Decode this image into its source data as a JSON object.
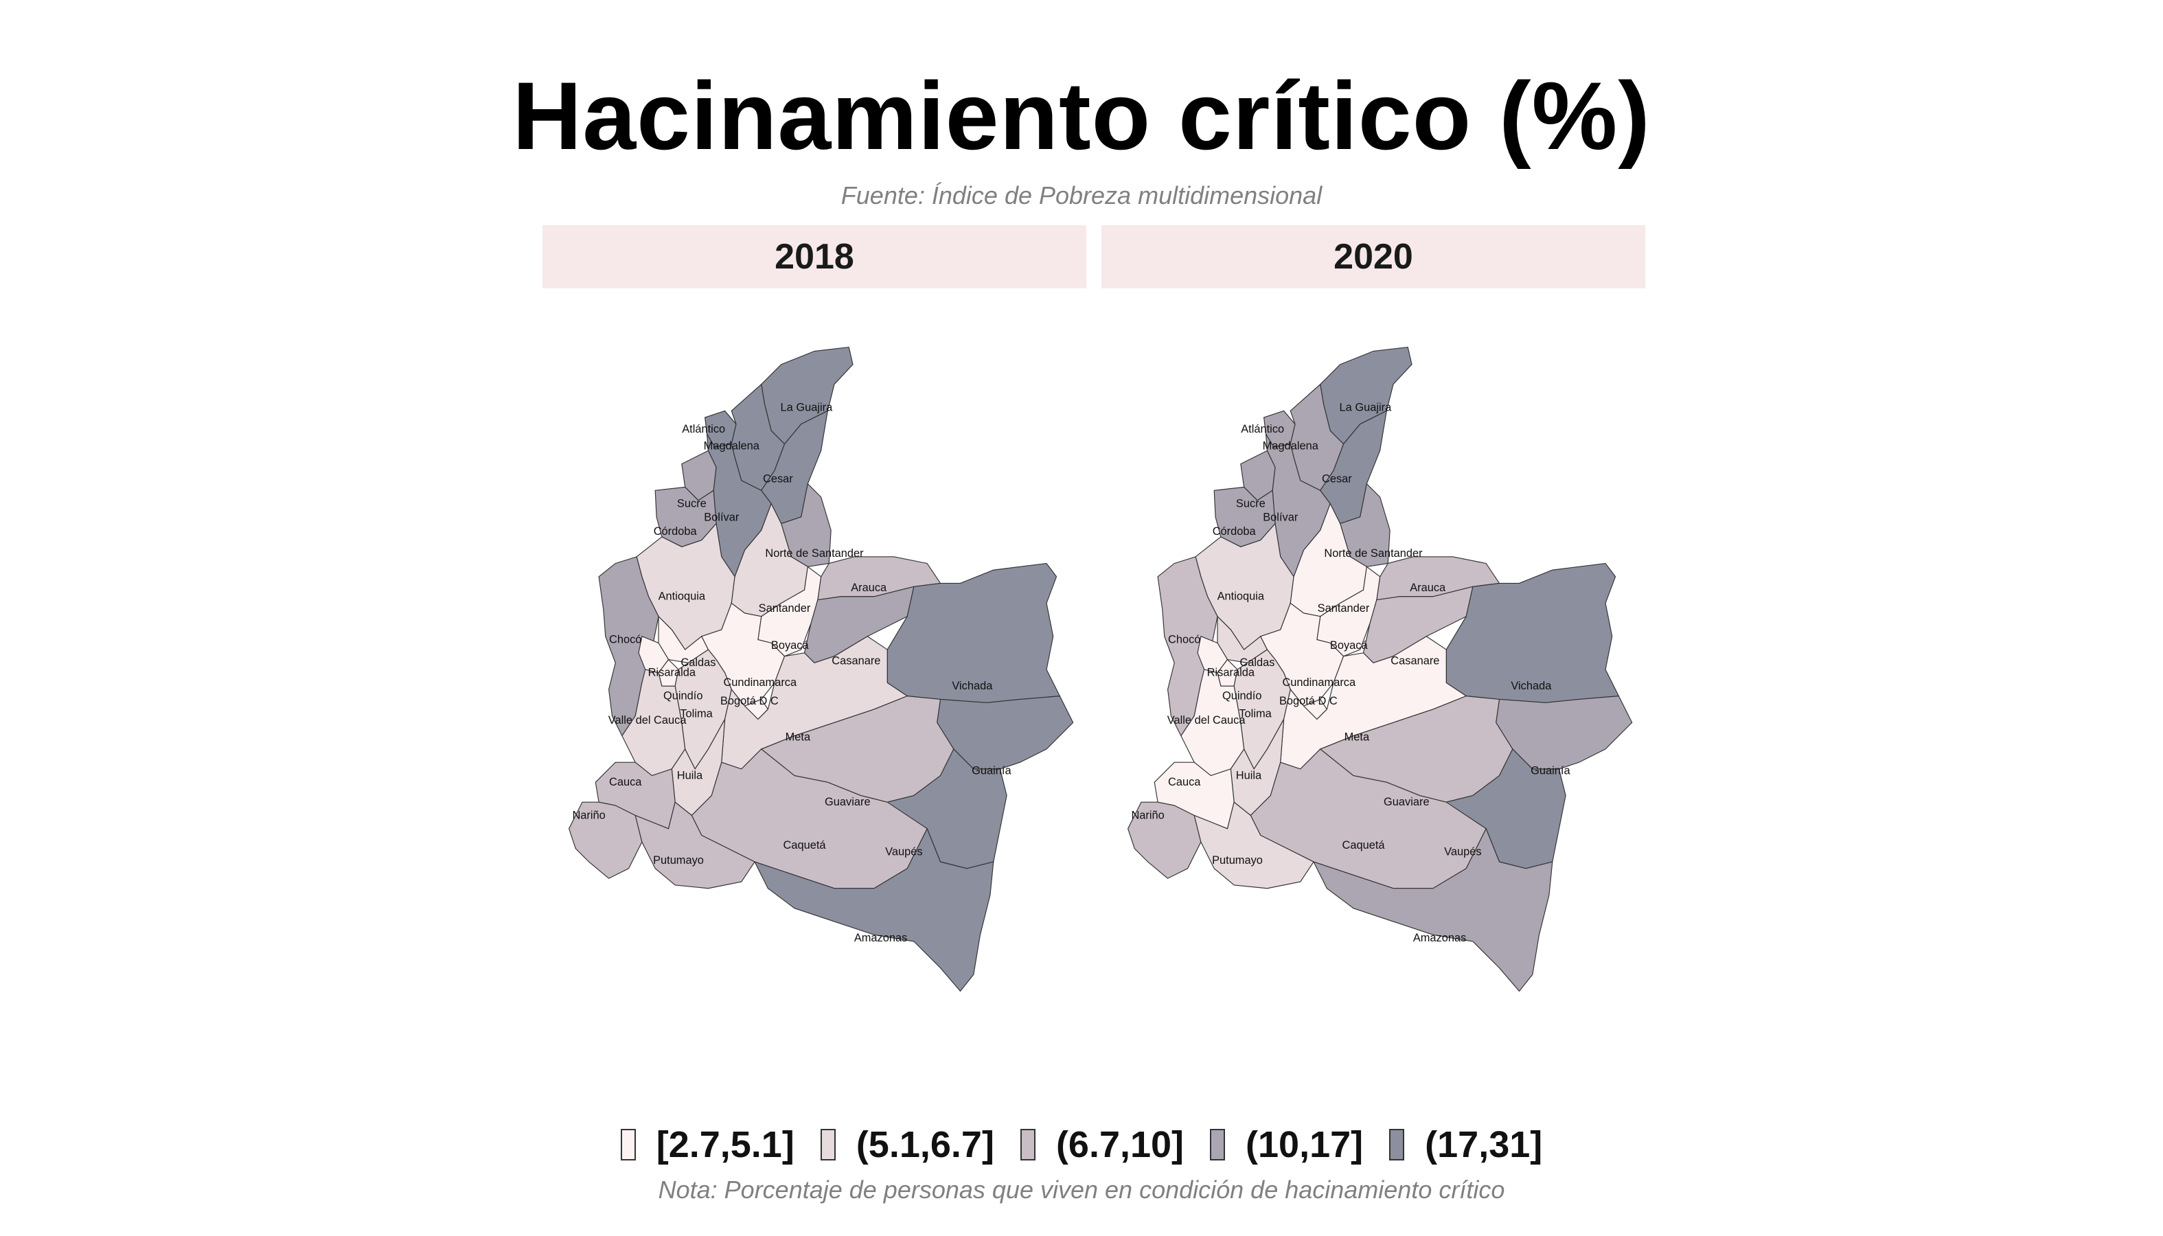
{
  "title": "Hacinamiento crítico (%)",
  "subtitle": "Fuente: Índice de Pobreza multidimensional",
  "note": "Nota: Porcentaje de personas que viven en condición de hacinamiento crítico",
  "panels": [
    {
      "year": "2018"
    },
    {
      "year": "2020"
    }
  ],
  "legend": {
    "classes": [
      {
        "label": "[2.7,5.1]",
        "color": "#fcf2f2"
      },
      {
        "label": "(5.1,6.7]",
        "color": "#e7dbde"
      },
      {
        "label": "(6.7,10]",
        "color": "#c9bec5"
      },
      {
        "label": "(10,17]",
        "color": "#aba6b2"
      },
      {
        "label": "(17,31]",
        "color": "#8b8f9e"
      }
    ]
  },
  "map_data": {
    "type": "choropleth",
    "region_names": {
      "la_guajira": "La Guajira",
      "atlantico": "Atlántico",
      "magdalena": "Magdalena",
      "cesar": "Cesar",
      "sucre": "Sucre",
      "bolivar": "Bolívar",
      "cordoba": "Córdoba",
      "norte_santander": "Norte de Santander",
      "antioquia": "Antioquia",
      "santander": "Santander",
      "arauca": "Arauca",
      "choco": "Chocó",
      "boyaca": "Boyacá",
      "casanare": "Casanare",
      "caldas": "Caldas",
      "risaralda": "Risaralda",
      "cundinamarca": "Cundinamarca",
      "vichada": "Vichada",
      "quindio": "Quindío",
      "bogota": "Bogotá D C",
      "tolima": "Tolima",
      "valle": "Valle del Cauca",
      "meta": "Meta",
      "huila": "Huila",
      "cauca": "Cauca",
      "guainia": "Guainía",
      "guaviare": "Guaviare",
      "narino": "Nariño",
      "caqueta": "Caquetá",
      "vaupes": "Vaupés",
      "putumayo": "Putumayo",
      "amazonas": "Amazonas"
    },
    "class_by_year": {
      "2018": {
        "la_guajira": 4,
        "atlantico": 4,
        "magdalena": 4,
        "cesar": 4,
        "sucre": 3,
        "bolivar": 4,
        "cordoba": 3,
        "norte_santander": 3,
        "antioquia": 1,
        "santander": 1,
        "arauca": 2,
        "choco": 3,
        "boyaca": 0,
        "casanare": 3,
        "caldas": 0,
        "risaralda": 0,
        "cundinamarca": 0,
        "vichada": 4,
        "quindio": 0,
        "bogota": 0,
        "tolima": 1,
        "valle": 1,
        "meta": 1,
        "huila": 1,
        "cauca": 2,
        "guainia": 4,
        "guaviare": 2,
        "narino": 2,
        "caqueta": 2,
        "vaupes": 4,
        "putumayo": 2,
        "amazonas": 4
      },
      "2020": {
        "la_guajira": 4,
        "atlantico": 3,
        "magdalena": 3,
        "cesar": 4,
        "sucre": 3,
        "bolivar": 3,
        "cordoba": 3,
        "norte_santander": 3,
        "antioquia": 1,
        "santander": 0,
        "arauca": 2,
        "choco": 2,
        "boyaca": 0,
        "casanare": 2,
        "caldas": 1,
        "risaralda": 0,
        "cundinamarca": 0,
        "vichada": 4,
        "quindio": 0,
        "bogota": 0,
        "tolima": 1,
        "valle": 0,
        "meta": 0,
        "huila": 1,
        "cauca": 0,
        "guainia": 3,
        "guaviare": 2,
        "narino": 2,
        "caqueta": 2,
        "vaupes": 4,
        "putumayo": 1,
        "amazonas": 3
      }
    }
  }
}
